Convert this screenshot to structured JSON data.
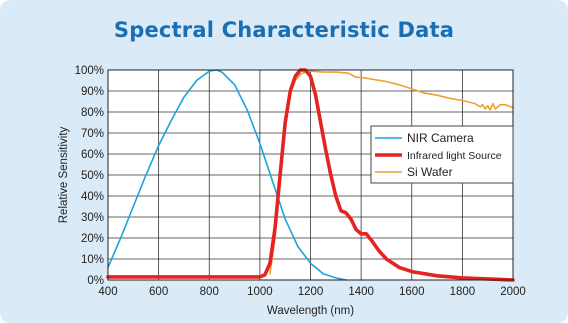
{
  "chart_data": {
    "type": "line",
    "title": "Spectral Characteristic Data",
    "xlabel": "Wavelength (nm)",
    "ylabel": "Relative Sensitivity",
    "xlim": [
      400,
      2000
    ],
    "ylim": [
      0,
      100
    ],
    "x_ticks": [
      400,
      600,
      800,
      1000,
      1200,
      1400,
      1600,
      1800,
      2000
    ],
    "x_tick_labels": [
      "400",
      "600",
      "800",
      "1000",
      "1200",
      "1400",
      "1600",
      "1800",
      "2000"
    ],
    "y_ticks": [
      0,
      10,
      20,
      30,
      40,
      50,
      60,
      70,
      80,
      90,
      100
    ],
    "y_tick_labels": [
      "0%",
      "10%",
      "20%",
      "30%",
      "40%",
      "50%",
      "60%",
      "70%",
      "80%",
      "90%",
      "100%"
    ],
    "grid": true,
    "legend_position": "center-right",
    "series": [
      {
        "name": "NIR Camera",
        "color": "#1aa3dc",
        "x": [
          400,
          450,
          500,
          550,
          600,
          650,
          700,
          750,
          800,
          830,
          850,
          900,
          950,
          1000,
          1050,
          1100,
          1150,
          1200,
          1250,
          1300,
          1340
        ],
        "y": [
          6,
          20,
          35,
          50,
          64,
          76,
          87,
          95,
          99.5,
          100,
          99,
          93,
          81,
          65,
          47,
          29,
          16,
          8,
          3,
          1,
          0
        ]
      },
      {
        "name": "Infrared light Source",
        "color": "#e42421",
        "x": [
          400,
          1000,
          1020,
          1040,
          1060,
          1080,
          1100,
          1120,
          1140,
          1160,
          1180,
          1200,
          1220,
          1240,
          1260,
          1280,
          1300,
          1320,
          1340,
          1360,
          1380,
          1400,
          1420,
          1440,
          1470,
          1500,
          1550,
          1600,
          1700,
          1800,
          1900,
          2000
        ],
        "y": [
          1.5,
          1.5,
          2.5,
          8,
          25,
          50,
          75,
          90,
          97,
          100,
          100,
          97,
          88,
          75,
          62,
          50,
          40,
          33,
          32,
          29,
          24,
          22,
          22,
          19,
          14,
          10,
          6,
          4,
          2,
          1,
          0.5,
          0
        ]
      },
      {
        "name": "Si Wafer",
        "color": "#f0a030",
        "x": [
          1040,
          1060,
          1080,
          1100,
          1120,
          1140,
          1160,
          1180,
          1200,
          1250,
          1300,
          1350,
          1380,
          1400,
          1450,
          1500,
          1550,
          1600,
          1650,
          1700,
          1750,
          1800,
          1850,
          1870,
          1880,
          1890,
          1900,
          1910,
          1920,
          1930,
          1950,
          1970,
          2000
        ],
        "y": [
          3,
          20,
          50,
          75,
          89,
          95,
          98,
          99,
          99.5,
          99,
          99,
          98.5,
          96.5,
          96.5,
          95.5,
          94.5,
          93,
          91,
          89,
          88,
          86.5,
          85.5,
          84,
          82.5,
          83.5,
          81.5,
          83,
          81,
          84,
          81.5,
          83.5,
          83.5,
          82
        ]
      }
    ]
  }
}
